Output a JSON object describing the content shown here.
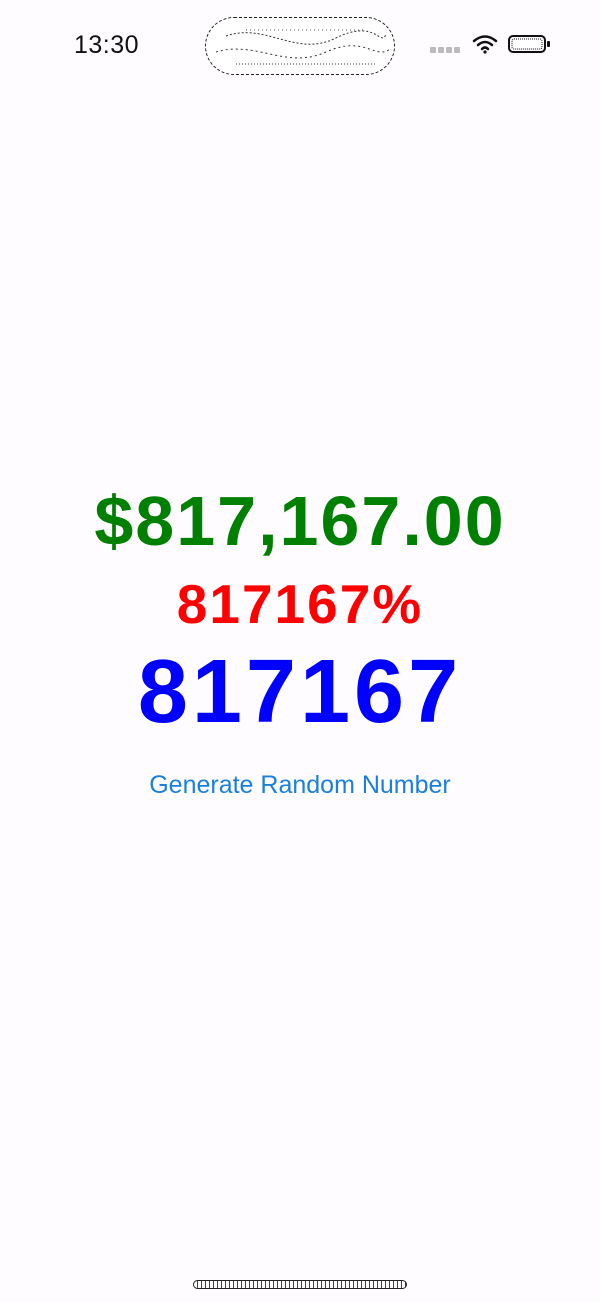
{
  "status_bar": {
    "time": "13:30",
    "signal_icon": "cellular-signal-icon",
    "wifi_icon": "wifi-icon",
    "battery_icon": "battery-icon"
  },
  "main": {
    "currency_value": "$817,167.00",
    "percent_value": "817167%",
    "plain_value": "817167",
    "generate_button_label": "Generate Random Number"
  },
  "colors": {
    "currency": "#008000",
    "percent": "#ff0000",
    "plain": "#0000ff",
    "button": "#1a7fe0",
    "background": "#fefcff"
  }
}
